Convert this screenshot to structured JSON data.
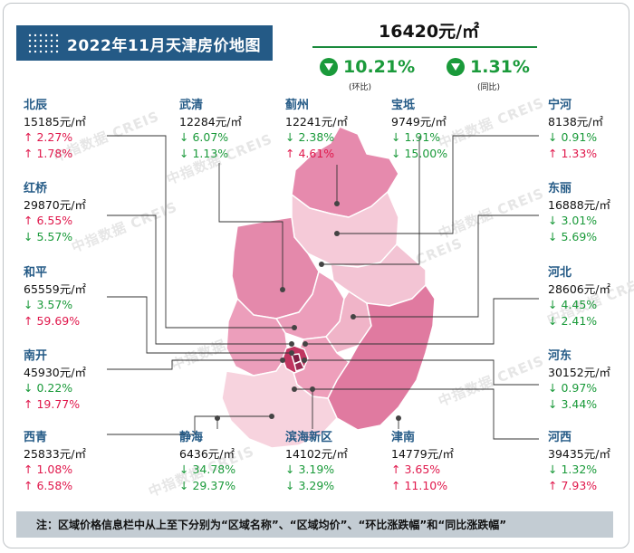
{
  "title": "2022年11月天津房价地图",
  "overall": {
    "price": "16420元/㎡",
    "mom_value": "10.21%",
    "mom_label": "(环比)",
    "yoy_value": "1.31%",
    "yoy_label": "(同比)",
    "direction": "down"
  },
  "watermark": "中指数据 CREIS",
  "districts": [
    {
      "name": "北辰",
      "price": "15185元/㎡",
      "mom": "↑ 2.27%",
      "mom_dir": "up",
      "yoy": "↑ 1.78%",
      "yoy_dir": "up"
    },
    {
      "name": "武清",
      "price": "12284元/㎡",
      "mom": "↓ 6.07%",
      "mom_dir": "down",
      "yoy": "↓ 1.13%",
      "yoy_dir": "down"
    },
    {
      "name": "蓟州",
      "price": "12241元/㎡",
      "mom": "↓ 2.38%",
      "mom_dir": "down",
      "yoy": "↑ 4.61%",
      "yoy_dir": "up"
    },
    {
      "name": "宝坻",
      "price": "9749元/㎡",
      "mom": "↓ 1.91%",
      "mom_dir": "down",
      "yoy": "↓ 15.00%",
      "yoy_dir": "down"
    },
    {
      "name": "宁河",
      "price": "8138元/㎡",
      "mom": "↓ 0.91%",
      "mom_dir": "down",
      "yoy": "↑ 1.33%",
      "yoy_dir": "up"
    },
    {
      "name": "红桥",
      "price": "29870元/㎡",
      "mom": "↑ 6.55%",
      "mom_dir": "up",
      "yoy": "↓ 5.57%",
      "yoy_dir": "down"
    },
    {
      "name": "东丽",
      "price": "16888元/㎡",
      "mom": "↓ 3.01%",
      "mom_dir": "down",
      "yoy": "↓ 5.69%",
      "yoy_dir": "down"
    },
    {
      "name": "和平",
      "price": "65559元/㎡",
      "mom": "↓ 3.57%",
      "mom_dir": "down",
      "yoy": "↑ 59.69%",
      "yoy_dir": "up"
    },
    {
      "name": "河北",
      "price": "28606元/㎡",
      "mom": "↓ 4.45%",
      "mom_dir": "down",
      "yoy": "↓ 2.41%",
      "yoy_dir": "down"
    },
    {
      "name": "南开",
      "price": "45930元/㎡",
      "mom": "↓ 0.22%",
      "mom_dir": "down",
      "yoy": "↑ 19.77%",
      "yoy_dir": "up"
    },
    {
      "name": "河东",
      "price": "30152元/㎡",
      "mom": "↓ 0.97%",
      "mom_dir": "down",
      "yoy": "↓ 3.44%",
      "yoy_dir": "down"
    },
    {
      "name": "西青",
      "price": "25833元/㎡",
      "mom": "↑ 1.08%",
      "mom_dir": "up",
      "yoy": "↑ 6.58%",
      "yoy_dir": "up"
    },
    {
      "name": "静海",
      "price": "6436元/㎡",
      "mom": "↓ 34.78%",
      "mom_dir": "down",
      "yoy": "↓ 29.37%",
      "yoy_dir": "down"
    },
    {
      "name": "滨海新区",
      "price": "14102元/㎡",
      "mom": "↓ 3.19%",
      "mom_dir": "down",
      "yoy": "↓ 3.29%",
      "yoy_dir": "down"
    },
    {
      "name": "津南",
      "price": "14779元/㎡",
      "mom": "↑ 3.65%",
      "mom_dir": "up",
      "yoy": "↑ 11.10%",
      "yoy_dir": "up"
    },
    {
      "name": "河西",
      "price": "39435元/㎡",
      "mom": "↓ 1.32%",
      "mom_dir": "down",
      "yoy": "↑ 7.93%",
      "yoy_dir": "up"
    }
  ],
  "note": "注：区域价格信息栏中从上至下分别为“区域名称”、“区域均价”、“环比涨跌幅”和“同比涨跌幅”",
  "colors": {
    "title_bg": "#245a86",
    "up": "#e0184c",
    "down": "#1a9a3a",
    "note_bg": "#c3ccd3"
  }
}
